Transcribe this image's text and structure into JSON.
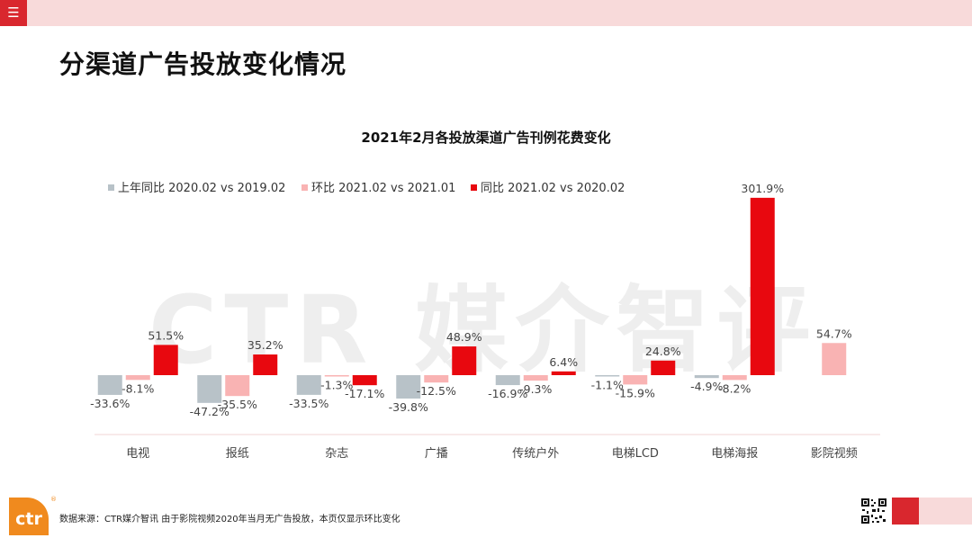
{
  "header": {
    "menu_icon": "hamburger-menu-icon",
    "bar_color": "#f8dada",
    "accent": "#d9272e"
  },
  "page_title": "分渠道广告投放变化情况",
  "watermark": "CTR 媒介智评",
  "chart_data": {
    "type": "bar",
    "title": "2021年2月各投放渠道广告刊例花费变化",
    "categories": [
      "电视",
      "报纸",
      "杂志",
      "广播",
      "传统户外",
      "电梯LCD",
      "电梯海报",
      "影院视频"
    ],
    "series": [
      {
        "name": "上年同比 2020.02 vs 2019.02",
        "color": "#b8c2c8",
        "values": [
          -33.6,
          -47.2,
          -33.5,
          -39.8,
          -16.9,
          -1.1,
          -4.9,
          null
        ],
        "labels": [
          "-33.6%",
          "-47.2%",
          "-33.5%",
          "-39.8%",
          "-16.9%",
          "-1.1%",
          "-4.9%",
          null
        ]
      },
      {
        "name": "环比 2021.02 vs 2021.01",
        "color": "#f9b3b3",
        "values": [
          -8.1,
          -35.5,
          -1.3,
          -12.5,
          -9.3,
          -15.9,
          -8.2,
          54.7
        ],
        "labels": [
          "-8.1%",
          "-35.5%",
          "-1.3%",
          "-12.5%",
          "-9.3%",
          "-15.9%",
          "-8.2%",
          "54.7%"
        ]
      },
      {
        "name": "同比 2021.02 vs 2020.02",
        "color": "#e8080f",
        "values": [
          51.5,
          35.2,
          -17.1,
          48.9,
          6.4,
          24.8,
          301.9,
          null
        ],
        "labels": [
          "51.5%",
          "35.2%",
          "-17.1%",
          "48.9%",
          "6.4%",
          "24.8%",
          "301.9%",
          null
        ]
      }
    ],
    "legend_position": "top-left",
    "grid": false,
    "ylim": [
      -50,
      310
    ]
  },
  "footer": {
    "logo_text": "ctr",
    "logo_mark": "®",
    "source_note": "数据来源：CTR媒介智讯   由于影院视频2020年当月无广告投放，本页仅显示环比变化",
    "qr_icon": "qr-code-icon"
  }
}
